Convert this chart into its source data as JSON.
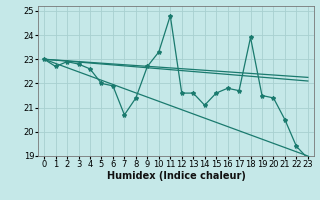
{
  "title": "",
  "xlabel": "Humidex (Indice chaleur)",
  "xlim": [
    -0.5,
    23.5
  ],
  "ylim": [
    19,
    25.2
  ],
  "yticks": [
    19,
    20,
    21,
    22,
    23,
    24,
    25
  ],
  "xticks": [
    0,
    1,
    2,
    3,
    4,
    5,
    6,
    7,
    8,
    9,
    10,
    11,
    12,
    13,
    14,
    15,
    16,
    17,
    18,
    19,
    20,
    21,
    22,
    23
  ],
  "bg_color": "#c5e8e8",
  "grid_color": "#a8d0d0",
  "line_color": "#1a7a6e",
  "main_y": [
    23.0,
    22.7,
    22.9,
    22.8,
    22.6,
    22.0,
    21.9,
    20.7,
    21.4,
    22.7,
    23.3,
    24.8,
    21.6,
    21.6,
    21.1,
    21.6,
    21.8,
    21.7,
    23.9,
    21.5,
    21.4,
    20.5,
    19.4,
    18.9
  ],
  "trend_lines": [
    {
      "x0": 0,
      "y0": 23.0,
      "x1": 23,
      "y1": 22.1
    },
    {
      "x0": 0,
      "y0": 23.0,
      "x1": 23,
      "y1": 22.25
    },
    {
      "x0": 0,
      "y0": 23.0,
      "x1": 23,
      "y1": 19.0
    }
  ],
  "xlabel_fontsize": 7,
  "tick_fontsize": 6,
  "linewidth": 0.9,
  "marker_size": 3.0
}
